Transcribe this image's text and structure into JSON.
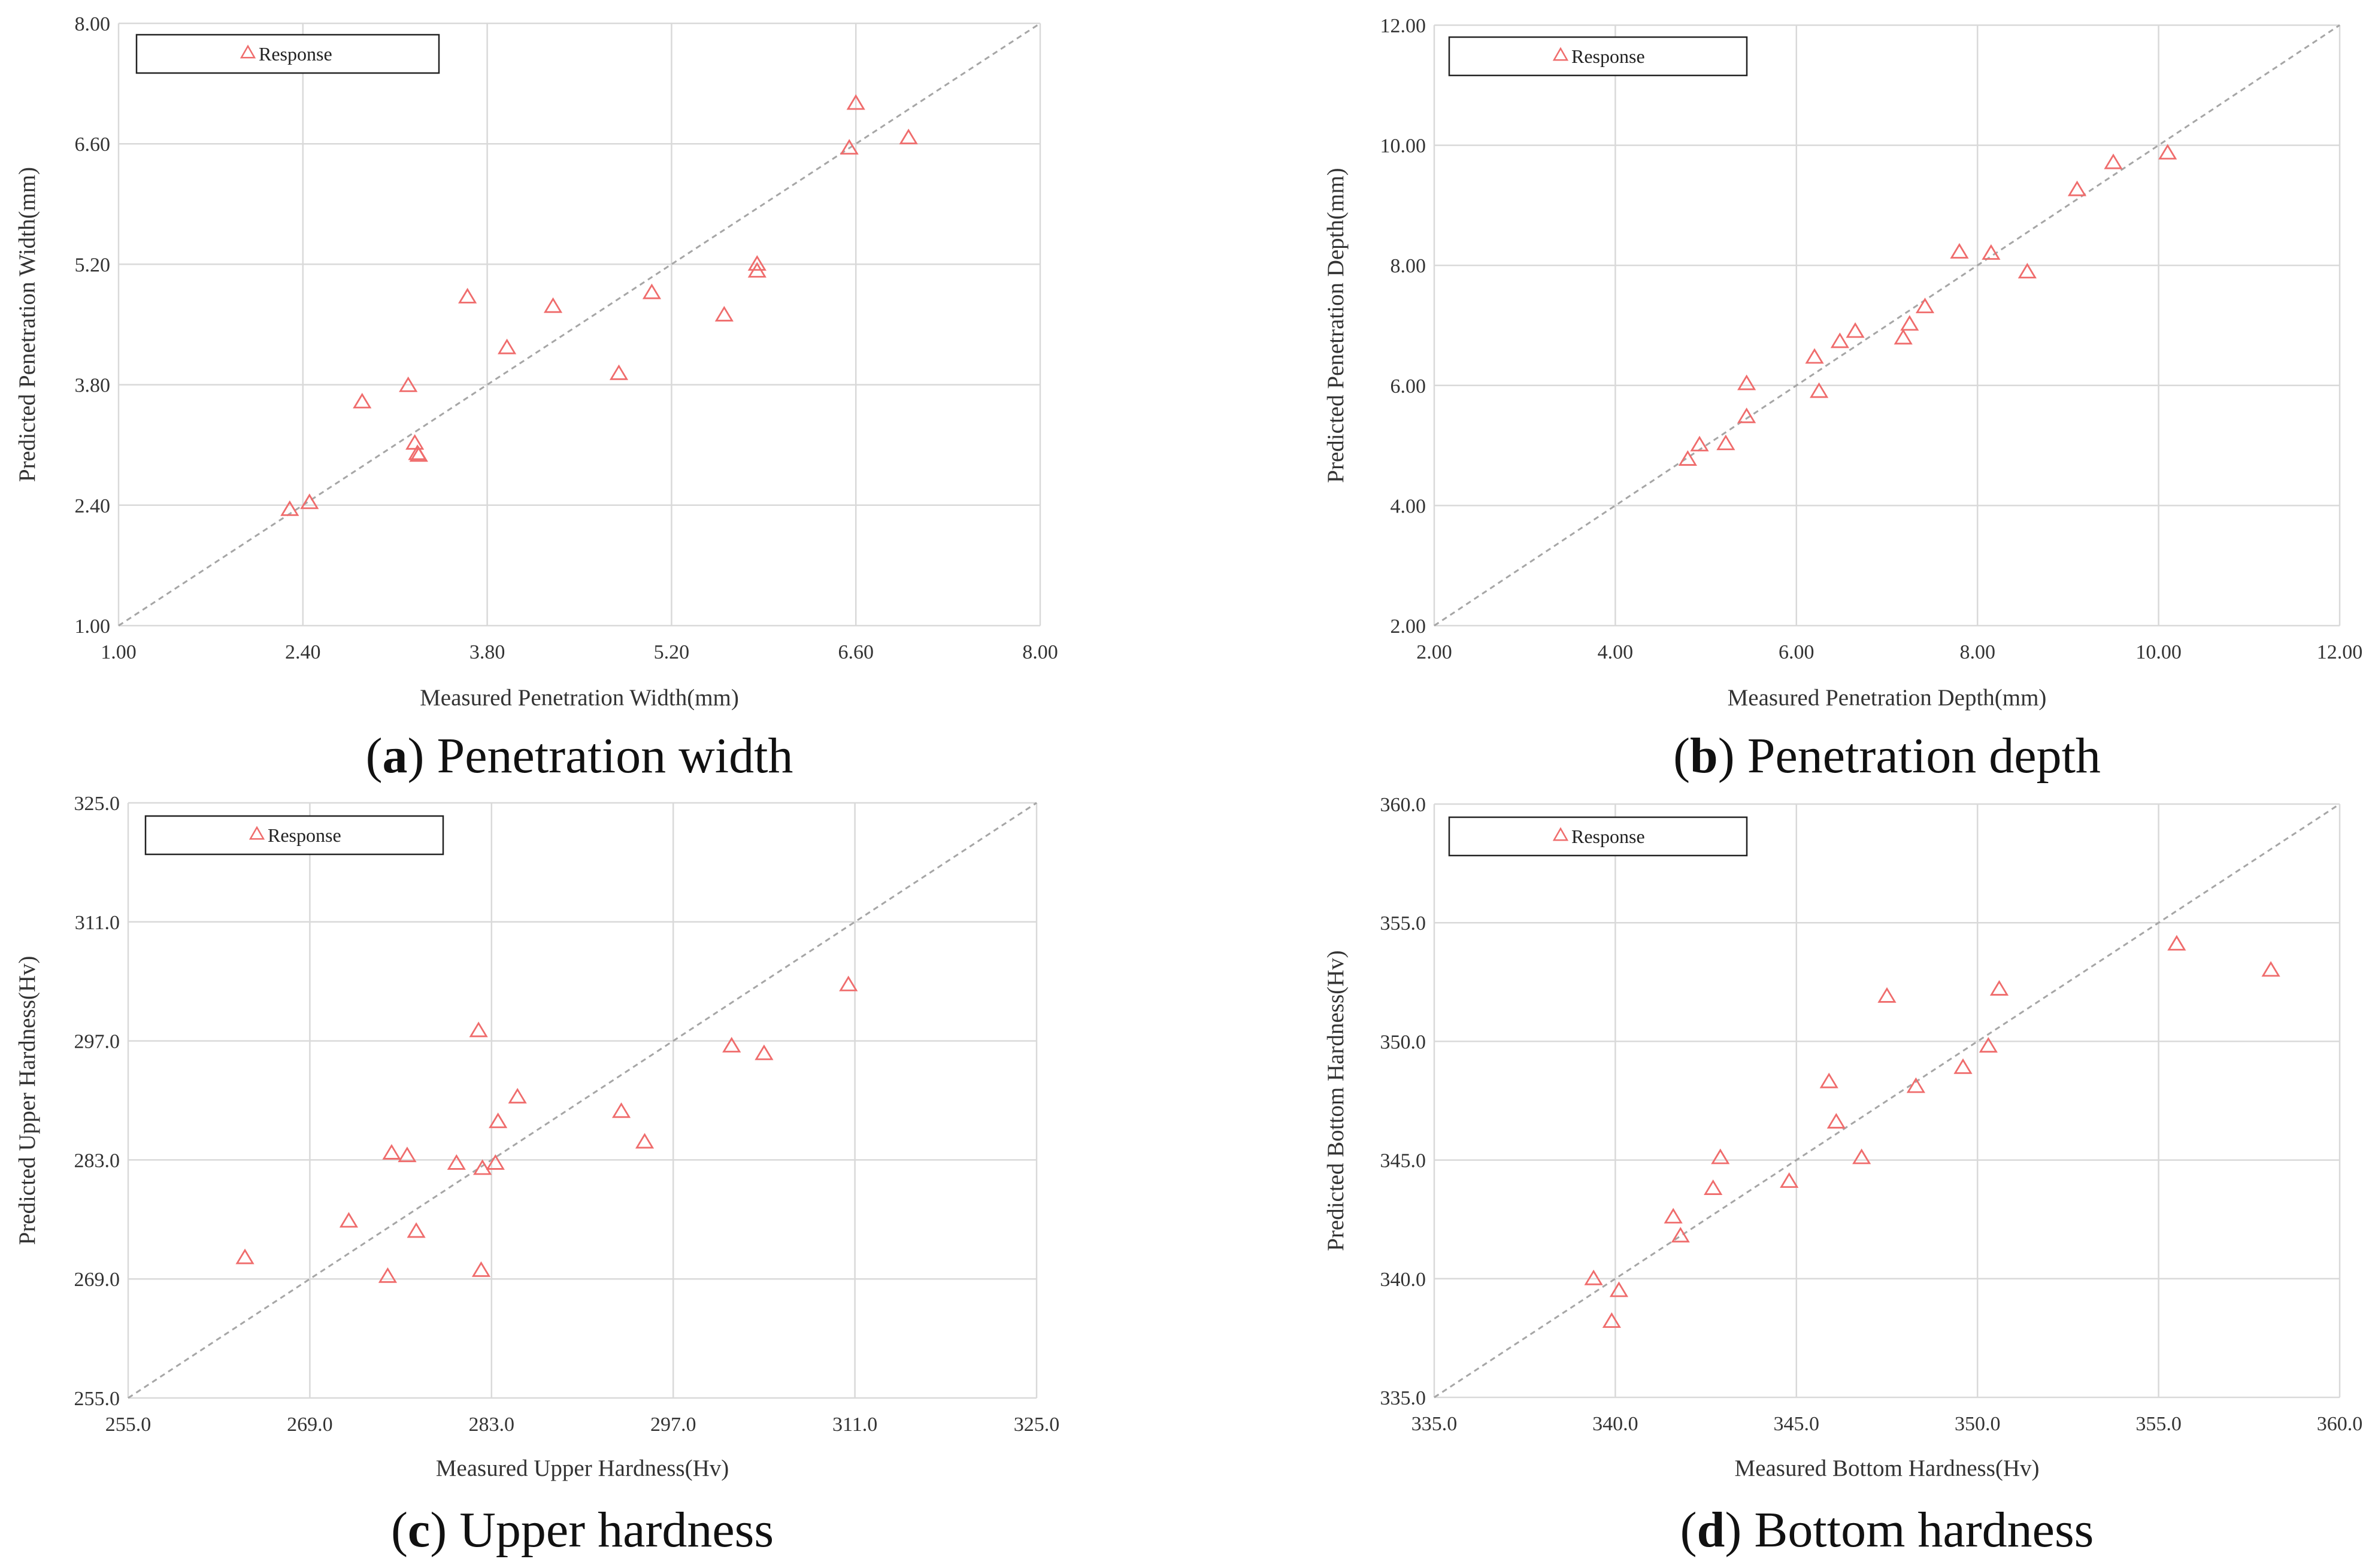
{
  "colors": {
    "marker": "#ef6c6c",
    "grid": "#d9d9d9",
    "diagonal": "#a6a6a6",
    "text": "#333333"
  },
  "chart_data": [
    {
      "id": "a",
      "type": "scatter",
      "caption_letter": "a",
      "caption_text": "Penetration width",
      "xlabel": "Measured Penetration Width(mm)",
      "ylabel": "Predicted Penetration Width(mm)",
      "xlim": [
        1.0,
        8.0
      ],
      "ylim": [
        1.0,
        8.0
      ],
      "xticks": [
        1.0,
        2.4,
        3.8,
        5.2,
        6.6,
        8.0
      ],
      "yticks": [
        1.0,
        2.4,
        3.8,
        5.2,
        6.6,
        8.0
      ],
      "xtick_labels": [
        "1.00",
        "2.40",
        "3.80",
        "5.20",
        "6.60",
        "8.00"
      ],
      "ytick_labels": [
        "1.00",
        "2.40",
        "3.80",
        "5.20",
        "6.60",
        "8.00"
      ],
      "legend": [
        "Response"
      ],
      "reference_line": "y = x",
      "series": [
        {
          "name": "Response",
          "marker": "triangle",
          "x": [
            2.3,
            2.45,
            2.85,
            3.2,
            3.25,
            3.27,
            3.28,
            3.65,
            3.95,
            4.3,
            4.8,
            5.05,
            5.6,
            5.85,
            5.85,
            6.55,
            6.6,
            7.0
          ],
          "y": [
            2.35,
            2.43,
            3.6,
            3.79,
            3.12,
            3.0,
            2.98,
            4.82,
            4.23,
            4.71,
            3.93,
            4.87,
            4.61,
            5.2,
            5.12,
            6.55,
            7.07,
            6.67
          ]
        }
      ]
    },
    {
      "id": "b",
      "type": "scatter",
      "caption_letter": "b",
      "caption_text": "Penetration depth",
      "xlabel": "Measured Penetration Depth(mm)",
      "ylabel": "Predicted Penetration Depth(mm)",
      "xlim": [
        2.0,
        12.0
      ],
      "ylim": [
        2.0,
        12.0
      ],
      "xticks": [
        2.0,
        4.0,
        6.0,
        8.0,
        10.0,
        12.0
      ],
      "yticks": [
        2.0,
        4.0,
        6.0,
        8.0,
        10.0,
        12.0
      ],
      "xtick_labels": [
        "2.00",
        "4.00",
        "6.00",
        "8.00",
        "10.00",
        "12.00"
      ],
      "ytick_labels": [
        "2.00",
        "4.00",
        "6.00",
        "8.00",
        "10.00",
        "12.00"
      ],
      "legend": [
        "Response"
      ],
      "reference_line": "y = x",
      "series": [
        {
          "name": "Response",
          "marker": "triangle",
          "x": [
            4.8,
            4.93,
            5.22,
            5.45,
            5.45,
            6.2,
            6.25,
            6.48,
            6.65,
            7.18,
            7.25,
            7.42,
            7.8,
            8.15,
            8.55,
            9.1,
            9.5,
            10.1
          ],
          "y": [
            4.77,
            5.01,
            5.03,
            5.48,
            6.03,
            6.47,
            5.9,
            6.73,
            6.9,
            6.79,
            7.02,
            7.31,
            8.22,
            8.2,
            7.89,
            9.26,
            9.71,
            9.87
          ]
        }
      ]
    },
    {
      "id": "c",
      "type": "scatter",
      "caption_letter": "c",
      "caption_text": "Upper hardness",
      "xlabel": "Measured Upper Hardness(Hv)",
      "ylabel": "Predicted Upper Hardness(Hv)",
      "xlim": [
        255.0,
        325.0
      ],
      "ylim": [
        255.0,
        325.0
      ],
      "xticks": [
        255,
        269,
        283,
        297,
        311,
        325
      ],
      "yticks": [
        255,
        269,
        283,
        297,
        311,
        325
      ],
      "xtick_labels": [
        "255.0",
        "269.0",
        "283.0",
        "297.0",
        "311.0",
        "325.0"
      ],
      "ytick_labels": [
        "255.0",
        "269.0",
        "283.0",
        "297.0",
        "311.0",
        "325.0"
      ],
      "legend": [
        "Response"
      ],
      "reference_line": "y = x",
      "series": [
        {
          "name": "Response",
          "marker": "triangle",
          "x": [
            264.0,
            272.0,
            275.0,
            275.3,
            276.5,
            277.2,
            280.3,
            282.0,
            282.2,
            282.3,
            283.3,
            283.5,
            285.0,
            293.0,
            294.8,
            301.5,
            304.0,
            310.5
          ],
          "y": [
            271.5,
            275.8,
            269.3,
            283.8,
            283.5,
            274.6,
            282.6,
            298.2,
            270.0,
            282.0,
            282.6,
            287.5,
            290.4,
            288.7,
            285.1,
            296.4,
            295.5,
            303.6
          ]
        }
      ]
    },
    {
      "id": "d",
      "type": "scatter",
      "caption_letter": "d",
      "caption_text": "Bottom hardness",
      "xlabel": "Measured Bottom Hardness(Hv)",
      "ylabel": "Predicted Bottom Hardness(Hv)",
      "xlim": [
        335.0,
        360.0
      ],
      "ylim": [
        335.0,
        360.0
      ],
      "xticks": [
        335,
        340,
        345,
        350,
        355,
        360
      ],
      "yticks": [
        335,
        340,
        345,
        350,
        355,
        360
      ],
      "xtick_labels": [
        "335.0",
        "340.0",
        "345.0",
        "350.0",
        "355.0",
        "360.0"
      ],
      "ytick_labels": [
        "335.0",
        "340.0",
        "345.0",
        "350.0",
        "355.0",
        "360.0"
      ],
      "legend": [
        "Response"
      ],
      "reference_line": "y = x",
      "series": [
        {
          "name": "Response",
          "marker": "triangle",
          "x": [
            339.4,
            339.9,
            340.1,
            341.6,
            341.8,
            342.7,
            342.9,
            344.8,
            345.9,
            346.1,
            346.8,
            347.5,
            348.3,
            349.6,
            350.3,
            350.6,
            355.5,
            358.1
          ],
          "y": [
            340.0,
            338.2,
            339.5,
            342.6,
            341.8,
            343.8,
            345.1,
            344.1,
            348.3,
            346.6,
            345.1,
            351.9,
            348.1,
            348.9,
            349.8,
            352.2,
            354.1,
            353.0
          ]
        }
      ]
    }
  ]
}
